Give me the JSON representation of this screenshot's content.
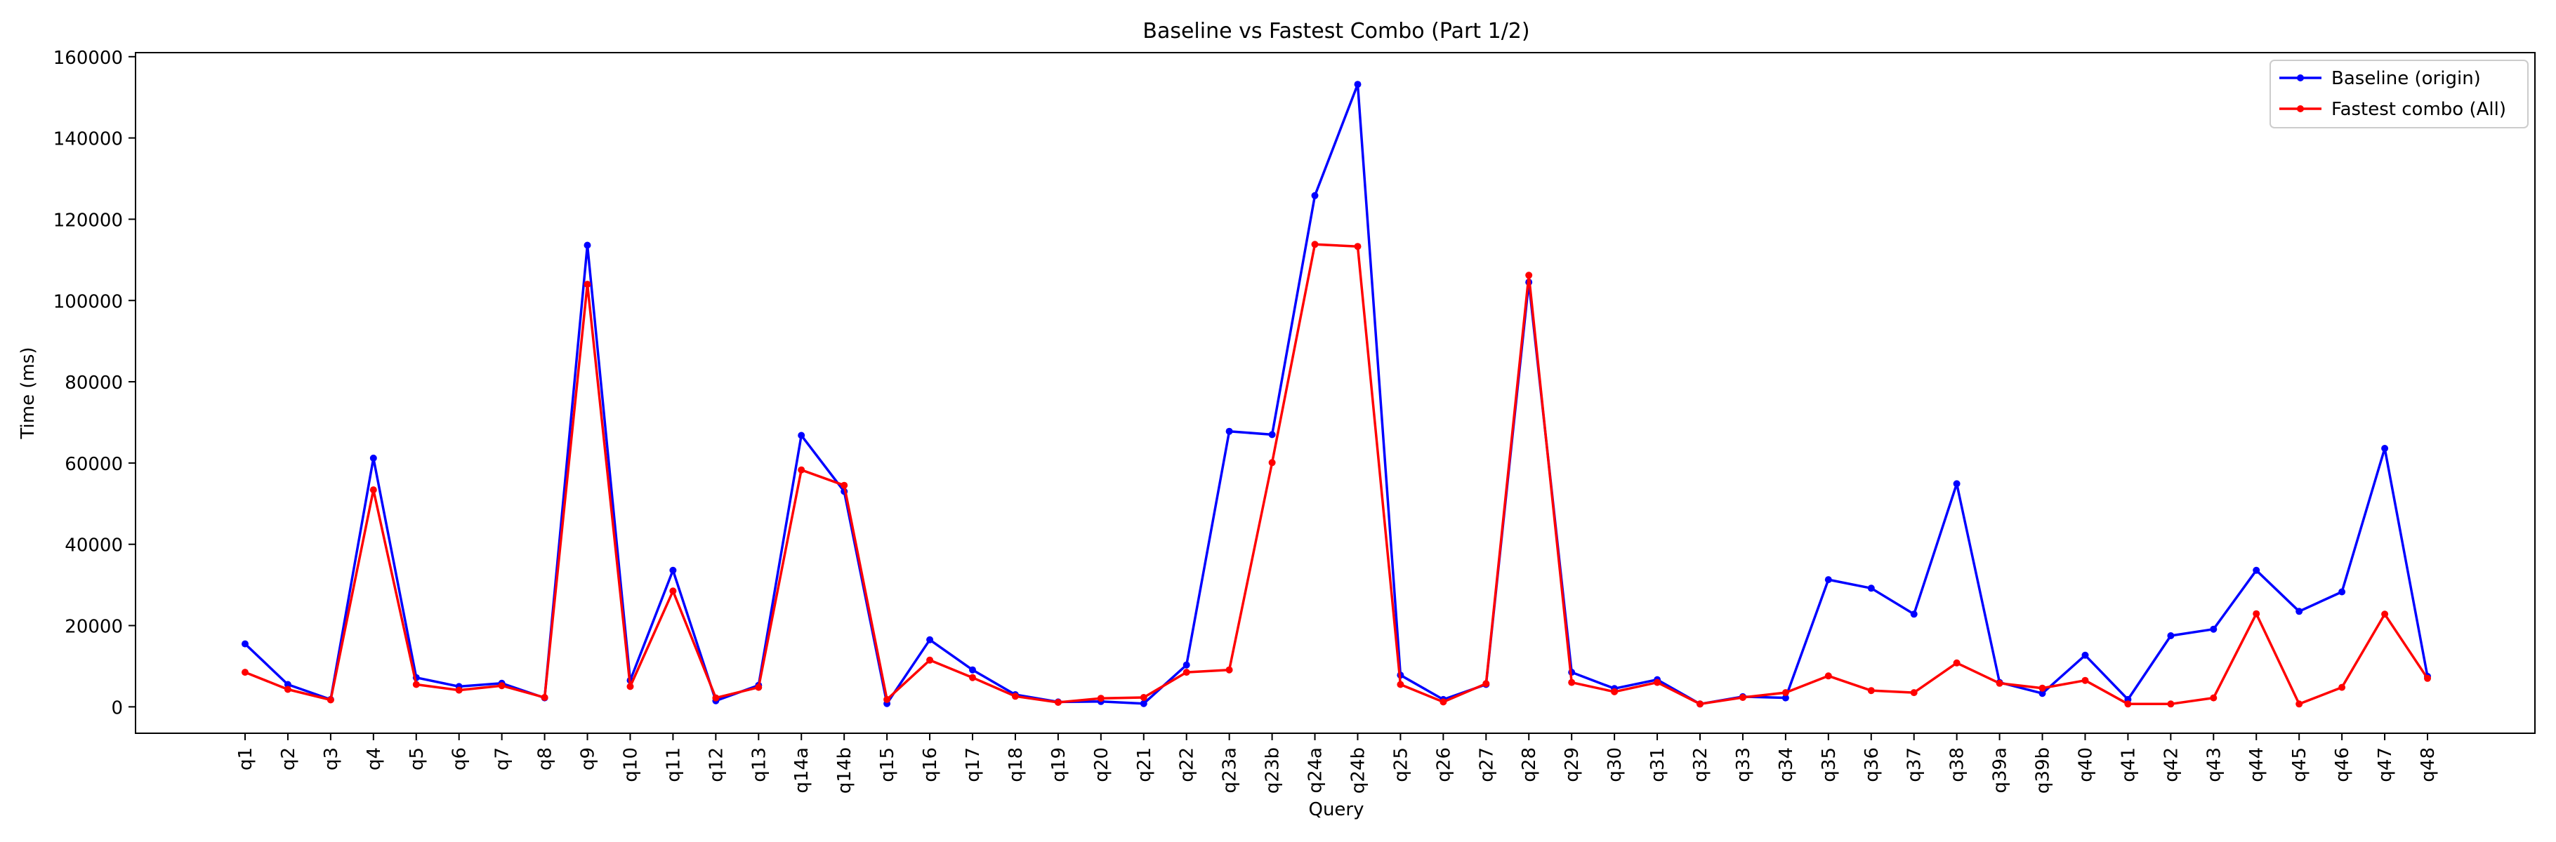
{
  "chart_data": {
    "type": "line",
    "title": "Baseline vs Fastest Combo (Part 1/2)",
    "xlabel": "Query",
    "ylabel": "Time (ms)",
    "ylim": [
      -6500,
      161000
    ],
    "yticks": [
      0,
      20000,
      40000,
      60000,
      80000,
      100000,
      120000,
      140000,
      160000
    ],
    "grid": false,
    "legend_position": "top-right",
    "categories": [
      "q1",
      "q2",
      "q3",
      "q4",
      "q5",
      "q6",
      "q7",
      "q8",
      "q9",
      "q10",
      "q11",
      "q12",
      "q13",
      "q14a",
      "q14b",
      "q15",
      "q16",
      "q17",
      "q18",
      "q19",
      "q20",
      "q21",
      "q22",
      "q23a",
      "q23b",
      "q24a",
      "q24b",
      "q25",
      "q26",
      "q27",
      "q28",
      "q29",
      "q30",
      "q31",
      "q32",
      "q33",
      "q34",
      "q35",
      "q36",
      "q37",
      "q38",
      "q39a",
      "q39b",
      "q40",
      "q41",
      "q42",
      "q43",
      "q44",
      "q45",
      "q46",
      "q47",
      "q48"
    ],
    "series": [
      {
        "name": "Baseline (origin)",
        "color": "#0000ff",
        "values": [
          15500,
          5500,
          1800,
          61200,
          7200,
          5000,
          5800,
          2200,
          113600,
          6500,
          33600,
          1500,
          5300,
          66800,
          53000,
          800,
          16500,
          9100,
          3000,
          1200,
          1300,
          800,
          10300,
          67800,
          67000,
          125800,
          153200,
          7800,
          1800,
          5500,
          104500,
          8500,
          4500,
          6700,
          700,
          2500,
          2200,
          31300,
          29200,
          22800,
          54900,
          6000,
          3300,
          12700,
          1800,
          17500,
          19100,
          33600,
          23500,
          28300,
          63600,
          7500
        ]
      },
      {
        "name": "Fastest combo (All)",
        "color": "#ff0000",
        "values": [
          8500,
          4300,
          1700,
          53400,
          5500,
          4100,
          5200,
          2300,
          104000,
          5000,
          28500,
          2200,
          4800,
          58300,
          54500,
          1800,
          11500,
          7200,
          2600,
          1100,
          2100,
          2300,
          8500,
          9100,
          60100,
          113800,
          113300,
          5500,
          1200,
          5700,
          106200,
          6000,
          3700,
          6000,
          700,
          2300,
          3500,
          7600,
          4000,
          3500,
          10800,
          5800,
          4600,
          6500,
          700,
          700,
          2200,
          22900,
          700,
          4800,
          22800,
          7000
        ]
      }
    ]
  }
}
